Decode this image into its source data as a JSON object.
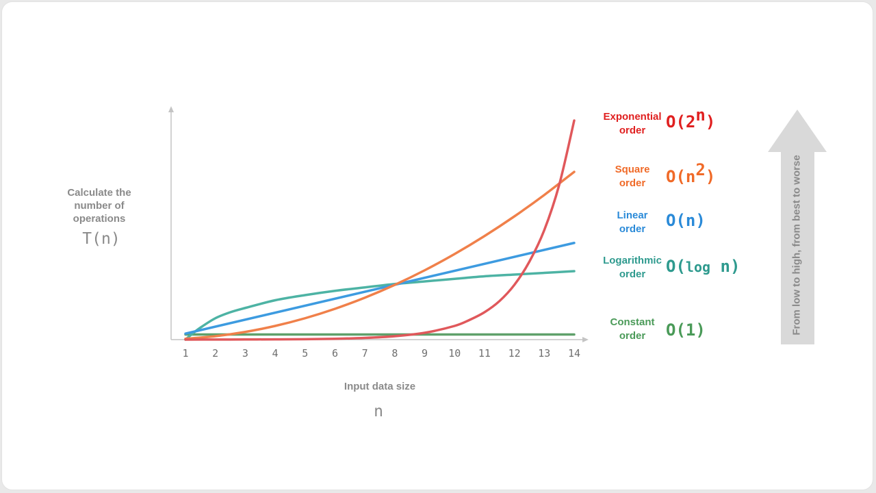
{
  "chart_data": {
    "type": "line",
    "xlabel": "Input data size",
    "xlabel_symbol": "n",
    "ylabel": "Calculate the number of operations",
    "ylabel_symbol": "T(n)",
    "x_ticks": [
      1,
      2,
      3,
      4,
      5,
      6,
      7,
      8,
      9,
      10,
      11,
      12,
      13,
      14
    ],
    "xlim": [
      1,
      14
    ],
    "grid": false,
    "legend_position": "right",
    "series": [
      {
        "key": "exponential",
        "name": "Exponential order",
        "notation": "O(2ⁿ)",
        "color": "#e0585b",
        "x": [
          1,
          2,
          3,
          4,
          5,
          6,
          7,
          8,
          9,
          10,
          10.5,
          11,
          11.5,
          12,
          12.5,
          13,
          13.5,
          14
        ],
        "y": [
          0,
          0.1,
          0.2,
          0.3,
          0.5,
          1,
          2,
          4,
          8,
          16,
          23,
          32,
          45,
          64,
          91,
          128,
          181,
          256
        ]
      },
      {
        "key": "square",
        "name": "Square order",
        "notation": "O(n²)",
        "color": "#f0804a",
        "x": [
          1,
          2,
          3,
          4,
          5,
          6,
          7,
          8,
          9,
          10,
          11,
          12,
          13,
          14
        ],
        "y": [
          1,
          4,
          9,
          16,
          25,
          36,
          49,
          64,
          81,
          100,
          121,
          144,
          169,
          196
        ]
      },
      {
        "key": "linear",
        "name": "Linear order",
        "notation": "O(n)",
        "color": "#3d9be0",
        "x": [
          1,
          14
        ],
        "y": [
          7,
          113
        ]
      },
      {
        "key": "logarithmic",
        "name": "Logarithmic order",
        "notation": "O(log n)",
        "color": "#4db3a4",
        "x": [
          1,
          1.2,
          1.5,
          2,
          2.5,
          3,
          4,
          5,
          6,
          7,
          8,
          9,
          10,
          11,
          12,
          13,
          14
        ],
        "y": [
          0,
          6,
          14,
          25,
          32,
          37,
          46,
          52,
          57,
          61,
          65,
          68,
          71,
          74,
          76,
          78,
          80
        ]
      },
      {
        "key": "constant",
        "name": "Constant order",
        "notation": "O(1)",
        "color": "#5fa06a",
        "x": [
          1,
          14
        ],
        "y": [
          6,
          6
        ]
      }
    ]
  },
  "legend": {
    "exponential": {
      "name_line1": "Exponential",
      "name_line2": "order",
      "base": "O(2",
      "exp": "n",
      "close": ")",
      "color": "#e02020"
    },
    "square": {
      "name_line1": "Square",
      "name_line2": "order",
      "base": "O(n",
      "exp": "2",
      "close": ")",
      "color": "#f06a28"
    },
    "linear": {
      "name_line1": "Linear",
      "name_line2": "order",
      "notation": "O(n)",
      "color": "#2a8ad8"
    },
    "logarithmic": {
      "name_line1": "Logarithmic",
      "name_line2": "order",
      "open": "O(",
      "fn": "log",
      "arg": " n",
      "close": ")",
      "color": "#2e9a8e"
    },
    "constant": {
      "name_line1": "Constant",
      "name_line2": "order",
      "notation": "O(1)",
      "color": "#4a9a58"
    }
  },
  "rank_arrow": {
    "label": "From low to high, from best to worse",
    "color": "#d9d9d9"
  }
}
